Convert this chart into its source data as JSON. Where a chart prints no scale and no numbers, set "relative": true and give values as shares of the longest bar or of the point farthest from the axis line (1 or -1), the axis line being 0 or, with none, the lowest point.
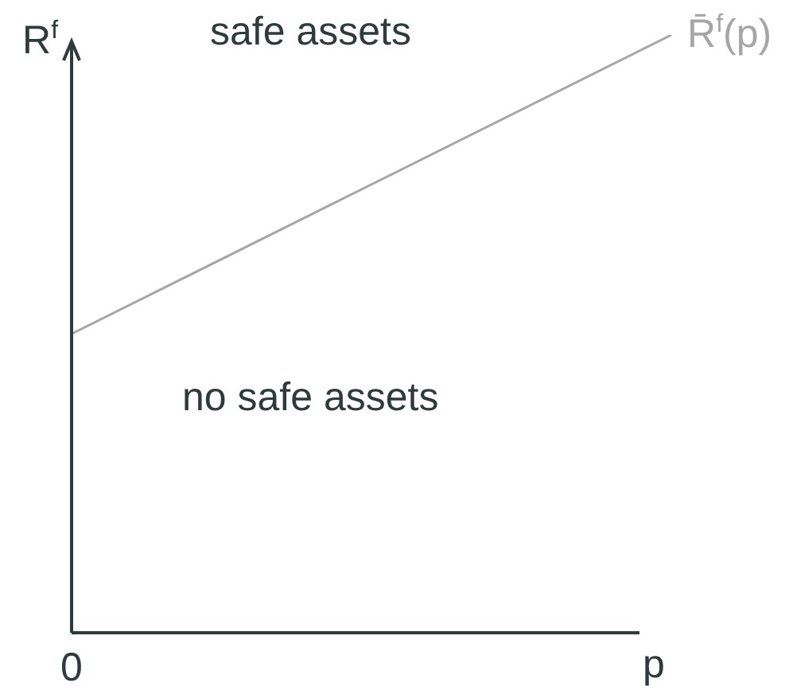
{
  "chart_data": {
    "type": "line",
    "relative": true,
    "categories": [
      null,
      null
    ],
    "series": [
      {
        "name": "R̄$^{f}$(p)",
        "color": "#a6a6a6",
        "values": [
          0.5,
          1
        ]
      }
    ],
    "xlabel": "p",
    "ylabel": "R$^{f}$",
    "marker": "none",
    "legend": false,
    "annotations": [
      "0",
      "safe assets",
      "no safe assets"
    ]
  }
}
